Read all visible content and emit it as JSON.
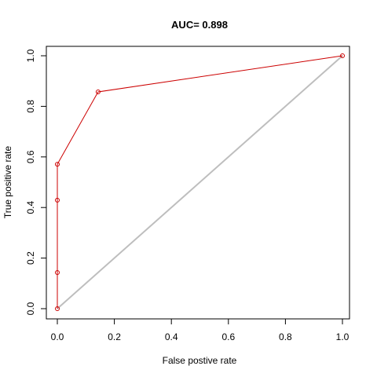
{
  "chart_data": {
    "type": "line",
    "title": "AUC= 0.898",
    "xlabel": "False postive rate",
    "ylabel": "True positive rate",
    "xlim": [
      0,
      1
    ],
    "ylim": [
      0,
      1
    ],
    "x_ticks": [
      0.0,
      0.2,
      0.4,
      0.6,
      0.8,
      1.0
    ],
    "x_tick_labels": [
      "0.0",
      "0.2",
      "0.4",
      "0.6",
      "0.8",
      "1.0"
    ],
    "y_ticks": [
      0.0,
      0.2,
      0.4,
      0.6,
      0.8,
      1.0
    ],
    "y_tick_labels": [
      "0.0",
      "0.2",
      "0.4",
      "0.6",
      "0.8",
      "1.0"
    ],
    "grid": false,
    "legend": "none",
    "series": [
      {
        "x": [
          0.0,
          0.0,
          0.0,
          0.0,
          0.143,
          1.0
        ],
        "y": [
          0.0,
          0.143,
          0.429,
          0.571,
          0.857,
          1.0
        ],
        "color": "#cc0000",
        "markers": true
      }
    ],
    "reference_line": {
      "x": [
        0.0,
        1.0
      ],
      "y": [
        0.0,
        1.0
      ],
      "color": "#bebebe"
    }
  }
}
